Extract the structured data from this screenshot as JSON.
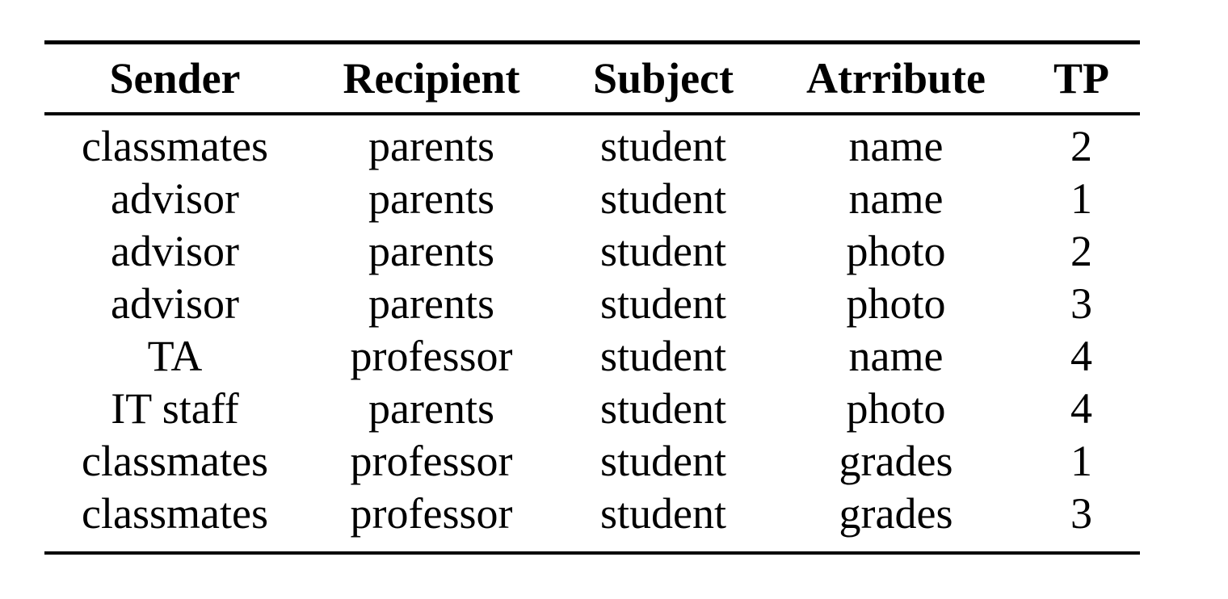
{
  "table": {
    "headers": [
      "Sender",
      "Recipient",
      "Subject",
      "Atrribute",
      "TP"
    ],
    "rows": [
      [
        "classmates",
        "parents",
        "student",
        "name",
        "2"
      ],
      [
        "advisor",
        "parents",
        "student",
        "name",
        "1"
      ],
      [
        "advisor",
        "parents",
        "student",
        "photo",
        "2"
      ],
      [
        "advisor",
        "parents",
        "student",
        "photo",
        "3"
      ],
      [
        "TA",
        "professor",
        "student",
        "name",
        "4"
      ],
      [
        "IT staff",
        "parents",
        "student",
        "photo",
        "4"
      ],
      [
        "classmates",
        "professor",
        "student",
        "grades",
        "1"
      ],
      [
        "classmates",
        "professor",
        "student",
        "grades",
        "3"
      ]
    ]
  }
}
